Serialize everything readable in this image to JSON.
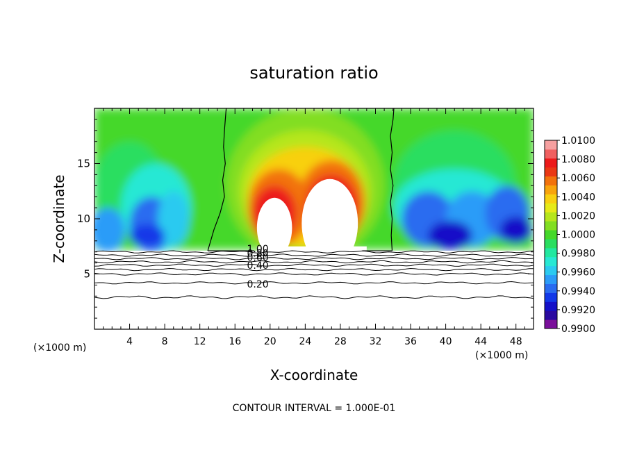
{
  "chart_data": {
    "type": "heatmap",
    "title": "saturation ratio",
    "xlabel": "X-coordinate",
    "ylabel": "Z-coordinate",
    "x_unit_left": "(×1000 m)",
    "x_unit_right": "(×1000 m)",
    "xlim": [
      0,
      50
    ],
    "ylim": [
      0,
      20
    ],
    "x_ticks": [
      4,
      8,
      12,
      16,
      20,
      24,
      28,
      32,
      36,
      40,
      44,
      48
    ],
    "y_ticks": [
      5,
      10,
      15
    ],
    "colorbar_labels": [
      "1.0100",
      "1.0080",
      "1.0060",
      "1.0040",
      "1.0020",
      "1.0000",
      "0.9980",
      "0.9960",
      "0.9940",
      "0.9920",
      "0.9900"
    ],
    "colorbar_values": [
      0.99,
      0.991,
      0.992,
      0.993,
      0.994,
      0.995,
      0.996,
      0.997,
      0.998,
      0.999,
      1.0,
      1.001,
      1.002,
      1.003,
      1.004,
      1.005,
      1.006,
      1.007,
      1.008,
      1.009,
      1.01
    ],
    "colorbar_colors": [
      "#7a0f9a",
      "#2a0aa0",
      "#1410c8",
      "#1238e8",
      "#2a6cf0",
      "#2c9cf8",
      "#2ccaf0",
      "#28e8d4",
      "#22e8a0",
      "#2ade60",
      "#44d82a",
      "#82de22",
      "#b6e61c",
      "#e6ea18",
      "#f8d010",
      "#f8a40c",
      "#f2720c",
      "#ea3814",
      "#ec1a1a",
      "#f06060",
      "#f6a0a0"
    ],
    "contour_labels": [
      "1.00",
      "0.80",
      "0.60",
      "0.40",
      "0.20"
    ],
    "contour_interval_text": "CONTOUR INTERVAL = 1.000E-01"
  }
}
